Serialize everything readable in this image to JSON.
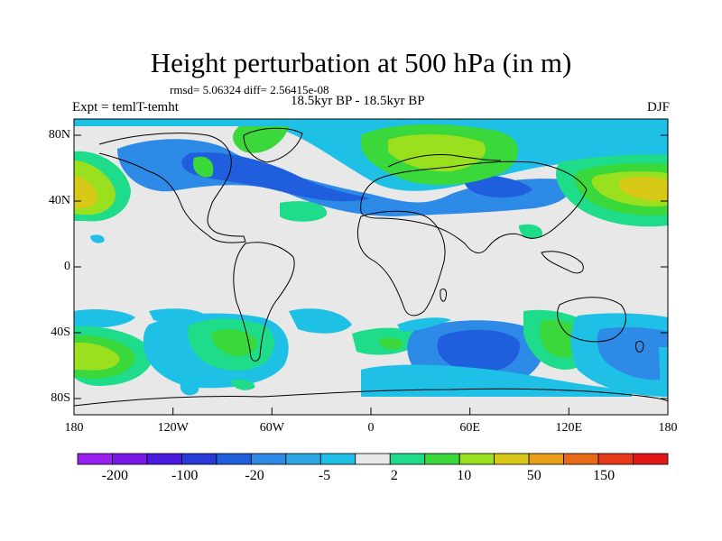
{
  "title": "Height perturbation at 500 hPa (in m)",
  "stats_line": "rmsd= 5.06324 diff= 2.56415e-08",
  "left_label": "Expt = temlT-temht",
  "center_label": "18.5kyr BP - 18.5kyr BP",
  "right_label": "DJF",
  "lat_ticks": [
    "80N",
    "40N",
    "0",
    "40S",
    "80S"
  ],
  "lon_ticks": [
    "180",
    "120W",
    "60W",
    "0",
    "60E",
    "120E",
    "180"
  ],
  "colorbar_labels": [
    "-200",
    "-100",
    "-20",
    "-5",
    "2",
    "10",
    "50",
    "150"
  ],
  "colorbar_colors": [
    "#9a20f0",
    "#7a18e8",
    "#4a1ae0",
    "#2a3ad6",
    "#1f5fde",
    "#2d8ae6",
    "#2ea6e6",
    "#1fc0e6",
    "#e8e8e8",
    "#1edc8a",
    "#3ad83a",
    "#9ae01e",
    "#d8c818",
    "#e8a018",
    "#e86a18",
    "#e83a18",
    "#e01818"
  ],
  "map_fill_colors": {
    "background": "#e8e8e8",
    "light_blue": "#1fc0e6",
    "blue": "#2d8ae6",
    "dark_blue": "#1f5fde",
    "teal": "#1edc8a",
    "green": "#3ad83a",
    "yellow_green": "#9ae01e",
    "yellow": "#d8c818",
    "orange": "#e8a018"
  }
}
